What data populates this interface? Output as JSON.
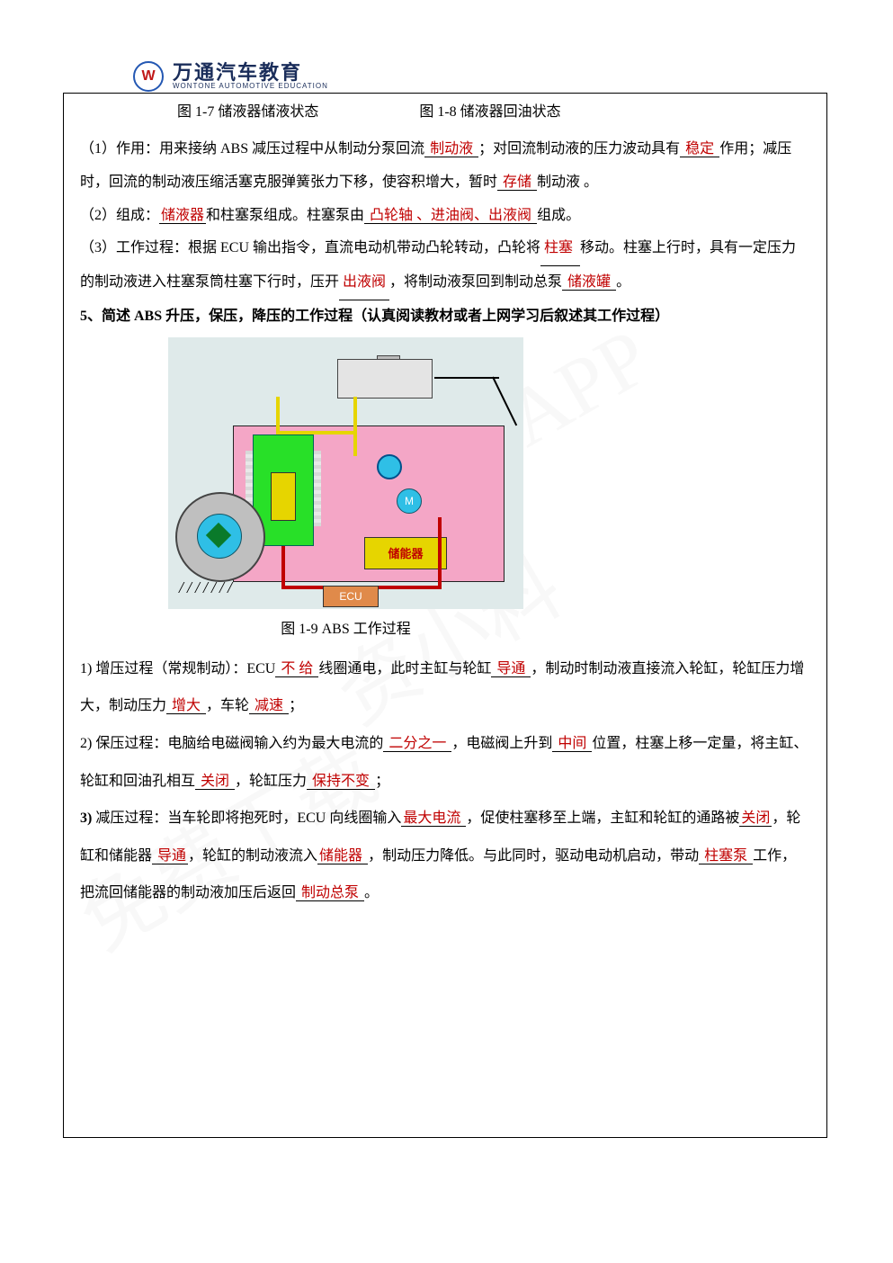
{
  "logo": {
    "w": "W",
    "cn": "万通汽车教育",
    "en": "WONTONE AUTOMOTIVE EDUCATION"
  },
  "captions": {
    "c17": "图 1-7  储液器储液状态",
    "c18": "图 1-8  储液器回油状态",
    "c19": "图 1-9  ABS 工作过程"
  },
  "para1": {
    "t1": "（1）作用：用来接纳 ABS 减压过程中从制动分泵回流",
    "a1": " 制动液       ",
    "t2": "；对回流制动液的压力波动具有",
    "a2": " 稳定     ",
    "t3": "作用；减压时，回流的制动液压缩活塞克服弹簧张力下移，使容积增大，暂时",
    "a3": "   存储               ",
    "t4": "制动液 。"
  },
  "para2": {
    "t1": "（2）组成：",
    "a1": "储液器",
    "t2": "和柱塞泵组成。柱塞泵由",
    "a2": " 凸轮轴 、进油阀、出液阀     ",
    "t3": "组成。"
  },
  "para3": {
    "t1": "（3）工作过程：根据 ECU 输出指令，直流电动机带动凸轮转动，凸轮将",
    "a1": "      柱塞 ",
    "t2": "移动。柱塞上行时，具有一定压力的制动液进入柱塞泵筒柱塞下行时，压开",
    "a2": "      出液阀     ",
    "t3": "，将制动液泵回到制动总泵",
    "a3": " 储液罐   ",
    "t4": "。"
  },
  "q5": "5、简述 ABS 升压，保压，降压的工作过程（认真阅读教材或者上网学习后叙述其工作过程）",
  "diag": {
    "motor": "M",
    "reservoir": "储能器",
    "ecu": "ECU",
    "ground": "///////"
  },
  "sp1": {
    "lead": "1) ",
    "t1": "增压过程（常规制动）：ECU",
    "a1": " 不 给 ",
    "t2": "线圈通电，此时主缸与轮缸",
    "a2": " 导通           ",
    "t3": "，制动时制动液直接流入轮缸，轮缸压力增大，制动压力",
    "a3": "   增大   ",
    "t4": "，车轮",
    "a4": " 减速   ",
    "t5": "；"
  },
  "sp2": {
    "lead": "2) ",
    "t1": "保压过程：电脑给电磁阀输入约为最大电流的",
    "a1": "    二分之一   ",
    "t2": "，电磁阀上升到",
    "a2": "    中间          ",
    "t3": "位置，柱塞上移一定量，将主缸、轮缸和回油孔相互",
    "a3": "   关闭       ",
    "t4": "，轮缸压力",
    "a4": " 保持不变   ",
    "t5": "；"
  },
  "sp3": {
    "lead": "3)  ",
    "t1": "减压过程：当车轮即将抱死时，ECU 向线圈输入",
    "a1": "最大电流 ",
    "t2": "，促使柱塞移至上端，主缸和轮缸的通路被",
    "a2": "关闭",
    "t3": "，轮缸和储能器",
    "a3": "    导通",
    "t4": "，轮缸的制动液流入",
    "a4": "储能器 ",
    "t5": "，制动压力降低。与此同时，驱动电动机启动，带动",
    "a5": " 柱塞泵 ",
    "t6": "工作，把流回储能器的制动液加压后返回",
    "a6": " 制动总泵     ",
    "t7": "。"
  },
  "wm": {
    "t1": "APP",
    "t2": "资小料",
    "t3": "免费下载"
  }
}
